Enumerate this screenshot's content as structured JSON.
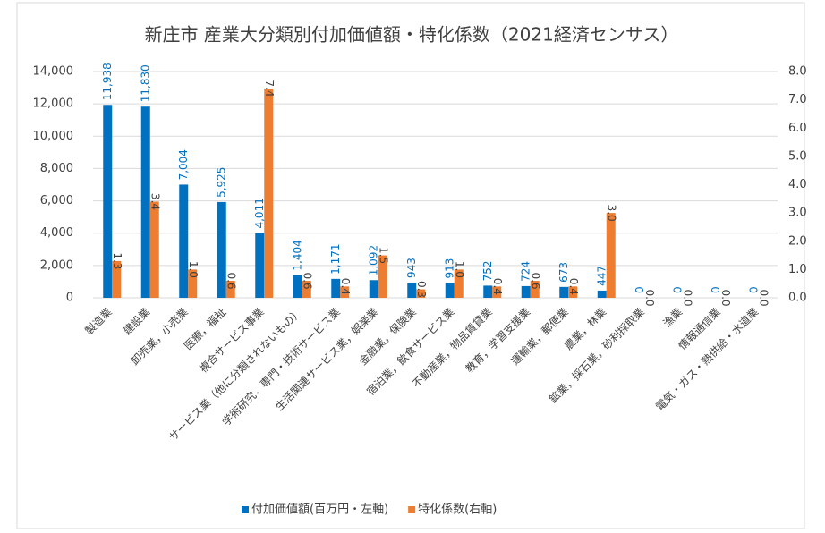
{
  "chart_data": {
    "type": "bar",
    "title": "新庄市 産業大分類別付加価値額・特化係数（2021経済センサス）",
    "categories": [
      "製造業",
      "建設業",
      "卸売業，小売業",
      "医療，福祉",
      "複合サービス事業",
      "サービス業（他に分類されないもの）",
      "学術研究，専門・技術サービス業",
      "生活関連サービス業，娯楽業",
      "金融業，保険業",
      "宿泊業，飲食サービス業",
      "不動産業，物品賃貸業",
      "教育，学習支援業",
      "運輸業，郵便業",
      "農業，林業",
      "鉱業，採石業，砂利採取業",
      "漁業",
      "情報通信業",
      "電気・ガス・熱供給・水道業"
    ],
    "series": [
      {
        "name": "付加価値額(百万円・左軸)",
        "color": "#0070c0",
        "values": [
          11938,
          11830,
          7004,
          5925,
          4011,
          1404,
          1171,
          1092,
          943,
          913,
          752,
          724,
          673,
          447,
          0,
          0,
          0,
          0
        ],
        "value_labels": [
          "11,938",
          "11,830",
          "7,004",
          "5,925",
          "4,011",
          "1,404",
          "1,171",
          "1,092",
          "943",
          "913",
          "752",
          "724",
          "673",
          "447",
          "0",
          "0",
          "0",
          "0"
        ]
      },
      {
        "name": "特化係数(右軸)",
        "color": "#ed7d31",
        "axis": "y2",
        "values": [
          1.3,
          3.4,
          1.0,
          0.6,
          7.4,
          0.6,
          0.4,
          1.5,
          0.3,
          1.0,
          0.4,
          0.6,
          0.4,
          3.0,
          0.0,
          0.0,
          0.0,
          0.0
        ],
        "value_labels": [
          "1.3",
          "3.4",
          "1.0",
          "0.6",
          "7.4",
          "0.6",
          "0.4",
          "1.5",
          "0.3",
          "1.0",
          "0.4",
          "0.6",
          "0.4",
          "3.0",
          "0.0",
          "0.0",
          "0.0",
          "0.0"
        ]
      }
    ],
    "ylim": [
      0,
      14000
    ],
    "yticks": [
      0,
      {
        "value": 2000,
        "label": "2,000"
      },
      {
        "value": 4000,
        "label": "4,000"
      },
      {
        "value": 6000,
        "label": "6,000"
      },
      {
        "value": 8000,
        "label": "8,000"
      },
      {
        "value": 10000,
        "label": "10,000"
      },
      {
        "value": 12000,
        "label": "12,000"
      },
      {
        "value": 14000,
        "label": "14,000"
      }
    ],
    "y2lim": [
      0,
      8
    ],
    "y2ticks": [
      {
        "value": 0,
        "label": "0.0"
      },
      {
        "value": 1,
        "label": "1.0"
      },
      {
        "value": 2,
        "label": "2.0"
      },
      {
        "value": 3,
        "label": "3.0"
      },
      {
        "value": 4,
        "label": "4.0"
      },
      {
        "value": 5,
        "label": "5.0"
      },
      {
        "value": 6,
        "label": "6.0"
      },
      {
        "value": 7,
        "label": "7.0"
      },
      {
        "value": 8,
        "label": "8.0"
      }
    ],
    "grid": true,
    "legend": "bottom"
  }
}
